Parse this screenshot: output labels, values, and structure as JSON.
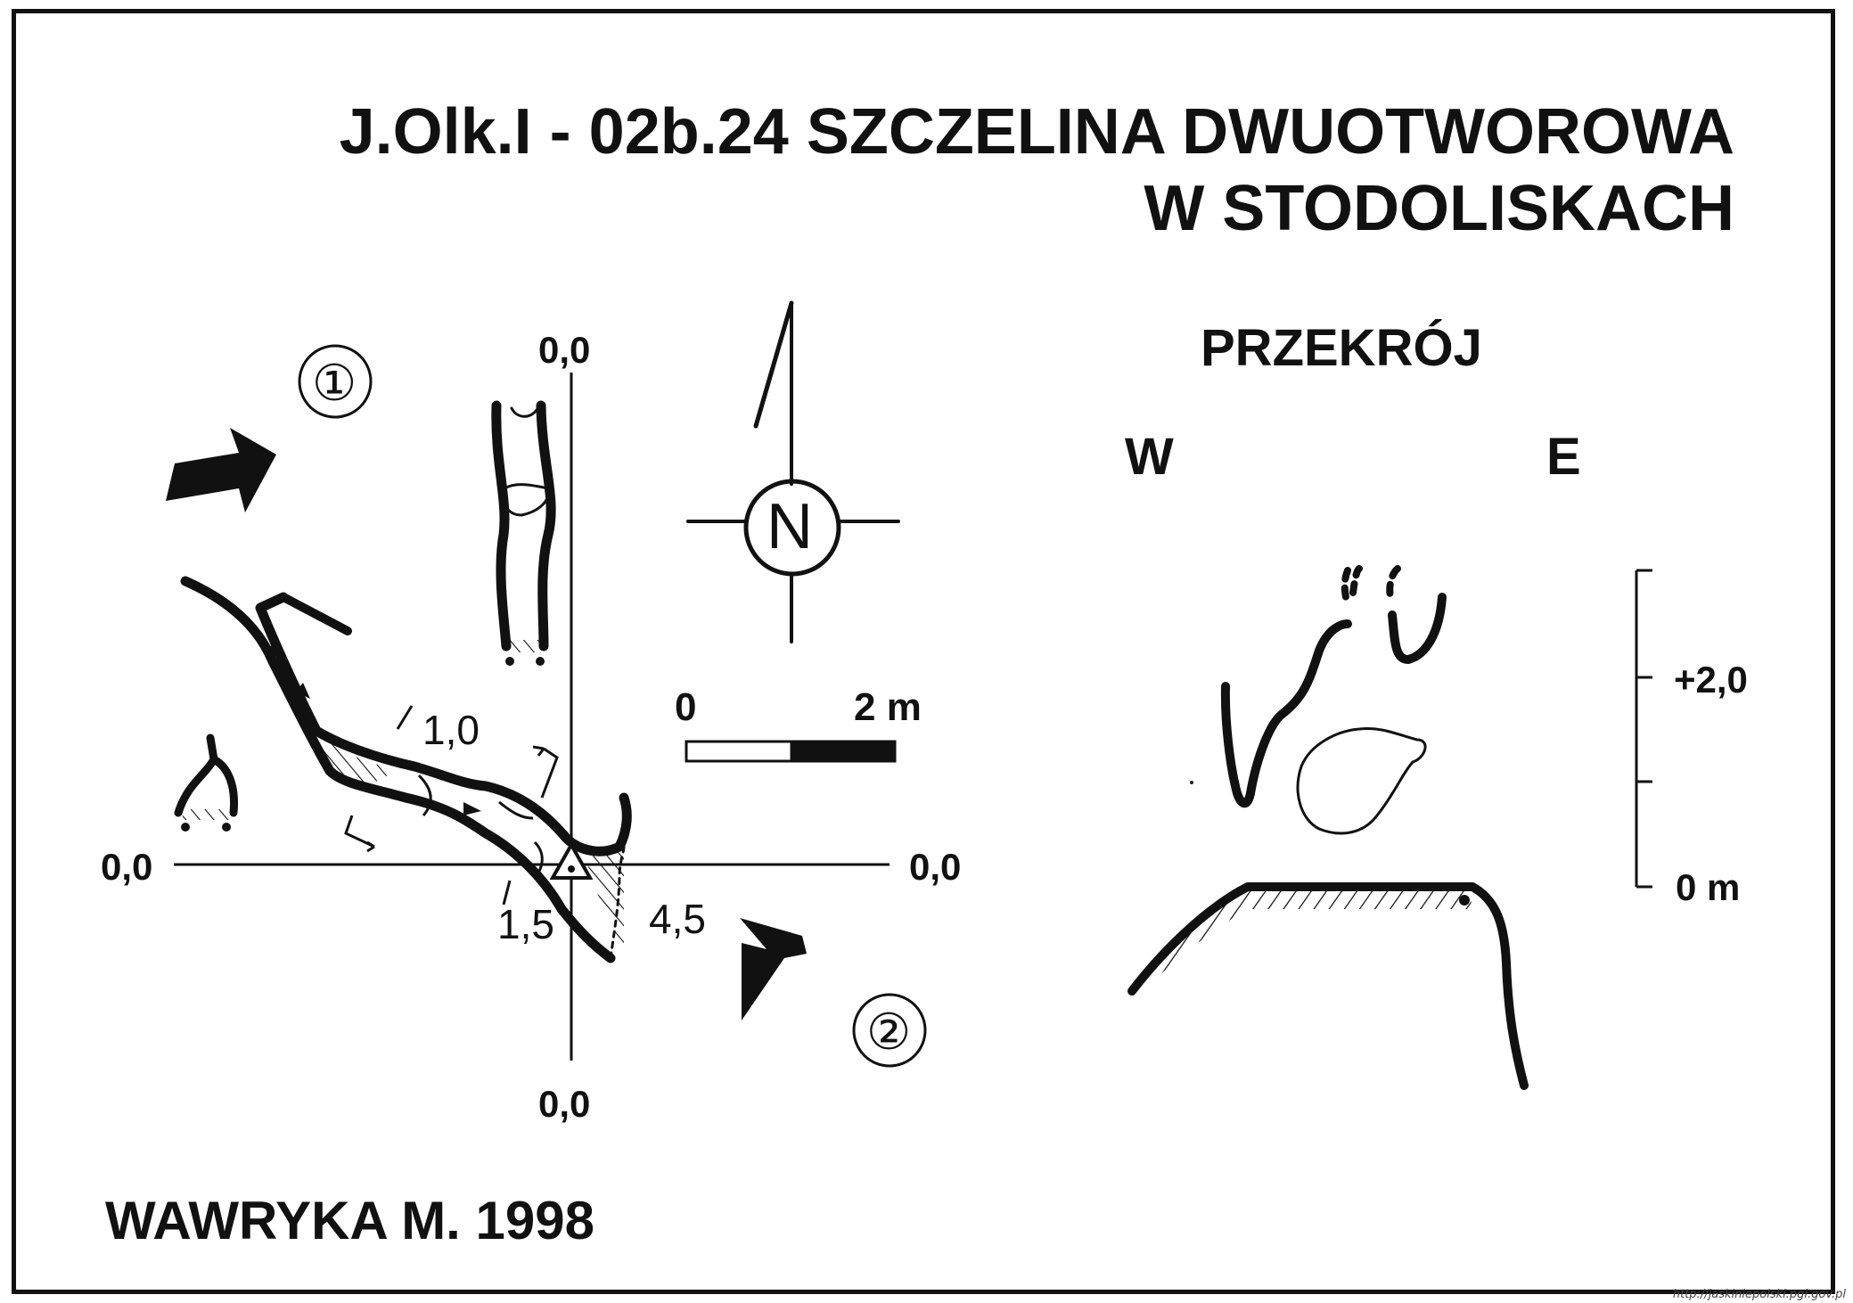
{
  "title": {
    "line1": "J.Olk.I - 02b.24  SZCZELINA DWUOTWOROWA",
    "line2": "W STODOLISKACH"
  },
  "author": "WAWRYKA M. 1998",
  "plan": {
    "axis_labels": {
      "top": "0,0",
      "left": "0,0",
      "right": "0,0",
      "bottom": "0,0"
    },
    "depth_labels": [
      "1,0",
      "1,5",
      "4,5"
    ],
    "entrance_markers": [
      "①",
      "②"
    ],
    "north_label": "N"
  },
  "scale_bar": {
    "start_label": "0",
    "end_label": "2 m"
  },
  "section": {
    "title": "PRZEKRÓJ",
    "west_label": "W",
    "east_label": "E",
    "height_scale": {
      "upper_label": "+2,0",
      "lower_label": "0 m"
    }
  },
  "source_url": "http://jaskiniepolski.pgi.gov.pl",
  "colors": {
    "ink": "#111111",
    "paper": "#ffffff"
  }
}
